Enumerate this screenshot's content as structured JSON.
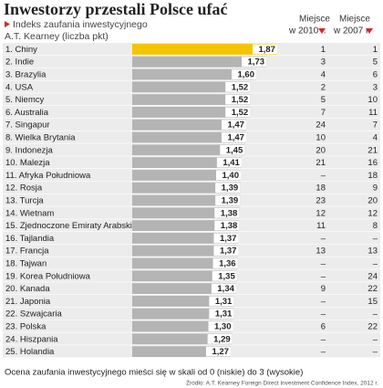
{
  "chart_data": {
    "type": "bar",
    "orientation": "horizontal",
    "title": "Inwestorzy przestali Polsce ufać",
    "subtitle": [
      "Indeks zaufania inwestycyjnego",
      "A.T. Kearney (liczba pkt)"
    ],
    "categories": [
      "1. Chiny",
      "2. Indie",
      "3. Brazylia",
      "4. USA",
      "5. Niemcy",
      "6. Australia",
      "7. Singapur",
      "8. Wielka Brytania",
      "9. Indonezja",
      "10. Malezja",
      "11. Afryka Południowa",
      "12. Rosja",
      "13. Turcja",
      "14. Wietnam",
      "15. Zjednoczone Emiraty Arabskie",
      "16. Tajlandia",
      "17. Francja",
      "18. Tajwan",
      "19. Korea Południowa",
      "20. Kanada",
      "21. Japonia",
      "22. Szwajcaria",
      "23. Polska",
      "24. Hiszpania",
      "25. Holandia"
    ],
    "values": [
      1.87,
      1.73,
      1.6,
      1.52,
      1.52,
      1.52,
      1.47,
      1.47,
      1.45,
      1.41,
      1.4,
      1.39,
      1.39,
      1.38,
      1.38,
      1.37,
      1.37,
      1.36,
      1.35,
      1.34,
      1.31,
      1.31,
      1.3,
      1.29,
      1.27
    ],
    "value_labels": [
      "1,87",
      "1,73",
      "1,60",
      "1,52",
      "1,52",
      "1,52",
      "1,47",
      "1,47",
      "1,45",
      "1,41",
      "1,40",
      "1,39",
      "1,39",
      "1,38",
      "1,38",
      "1,37",
      "1,37",
      "1,36",
      "1,35",
      "1,34",
      "1,31",
      "1,31",
      "1,30",
      "1,29",
      "1,27"
    ],
    "xlim": [
      0,
      3
    ],
    "color": "#b4b4b4",
    "highlight": {
      "index": 0,
      "color": "#f5c400"
    },
    "columns": [
      {
        "header": [
          "Miejsce",
          "w 2010 r."
        ],
        "values": [
          1,
          3,
          4,
          2,
          5,
          7,
          24,
          10,
          20,
          21,
          "–",
          18,
          23,
          12,
          11,
          "–",
          13,
          "–",
          "–",
          9,
          "–",
          "–",
          6,
          "–",
          "–"
        ]
      },
      {
        "header": [
          "Miejsce",
          "w 2007 r."
        ],
        "values": [
          1,
          5,
          6,
          3,
          10,
          11,
          7,
          4,
          21,
          16,
          18,
          9,
          20,
          12,
          8,
          "–",
          13,
          "–",
          24,
          22,
          15,
          "–",
          22,
          "–",
          "–"
        ]
      }
    ],
    "note": "Ocena zaufania inwestycyjnego mieści się w skali od 0 (niskie) do 3 (wysokie)",
    "source": "Źródło: A.T. Kearney Foreign Direct Investment Confidence Index, 2012 r."
  }
}
